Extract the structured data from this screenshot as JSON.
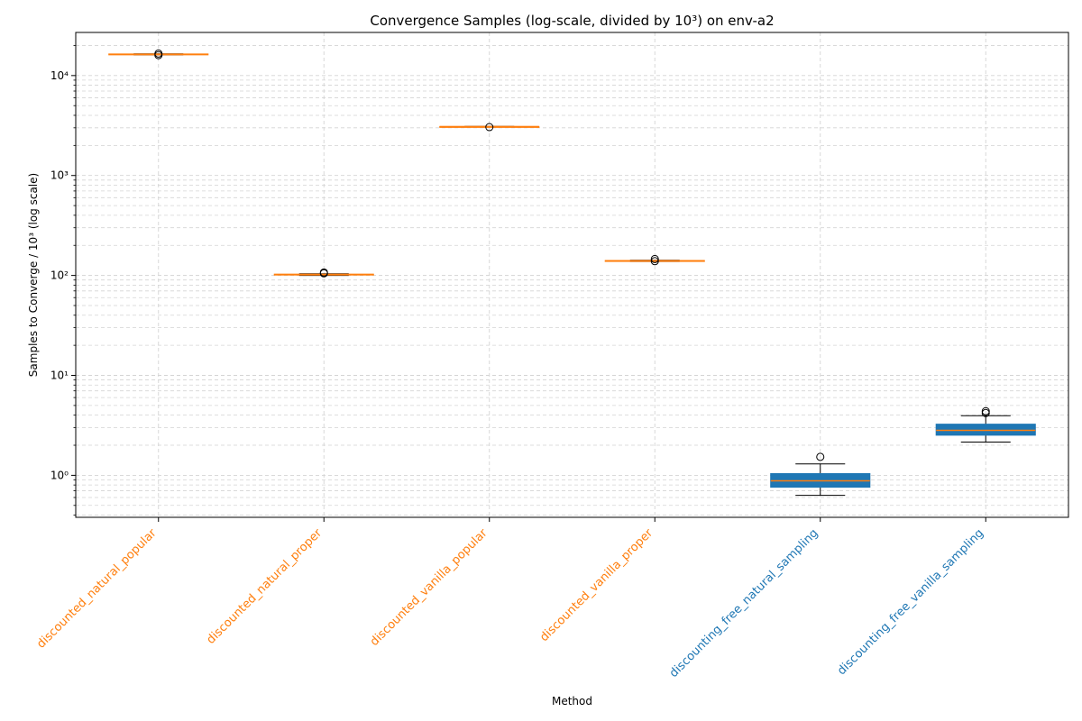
{
  "chart_data": {
    "type": "box",
    "title": "Convergence Samples (log-scale, divided by 10³) on env-a2",
    "xlabel": "Method",
    "ylabel": "Samples to Converge / 10³ (log scale)",
    "yscale": "log",
    "ylim": [
      0.38,
      27000
    ],
    "y_ticks": [
      1,
      10,
      100,
      1000,
      10000
    ],
    "y_tick_labels": [
      "10⁰",
      "10¹",
      "10²",
      "10³",
      "10⁴"
    ],
    "grid": true,
    "categories": [
      "discounted_natural_popular",
      "discounted_natural_proper",
      "discounted_vanilla_popular",
      "discounted_vanilla_proper",
      "discounting_free_natural_sampling",
      "discounting_free_vanilla_sampling"
    ],
    "category_colors": [
      "#ff7f0e",
      "#ff7f0e",
      "#ff7f0e",
      "#ff7f0e",
      "#1f77b4",
      "#1f77b4"
    ],
    "boxes": [
      {
        "q1": 16200,
        "median": 16300,
        "q3": 16450,
        "whisker_low": 16100,
        "whisker_high": 16500,
        "outliers": [
          16000,
          16600
        ],
        "color": "#ff7f0e"
      },
      {
        "q1": 101,
        "median": 102,
        "q3": 103,
        "whisker_low": 100,
        "whisker_high": 104,
        "outliers": [
          105,
          107
        ],
        "color": "#ff7f0e"
      },
      {
        "q1": 3070,
        "median": 3080,
        "q3": 3090,
        "whisker_low": 3060,
        "whisker_high": 3100,
        "outliers": [
          3050
        ],
        "color": "#ff7f0e"
      },
      {
        "q1": 139,
        "median": 140,
        "q3": 141,
        "whisker_low": 138,
        "whisker_high": 142,
        "outliers": [
          139,
          146
        ],
        "color": "#ff7f0e"
      },
      {
        "q1": 0.76,
        "median": 0.88,
        "q3": 1.04,
        "whisker_low": 0.63,
        "whisker_high": 1.3,
        "outliers": [
          1.53
        ],
        "color": "#1f77b4"
      },
      {
        "q1": 2.52,
        "median": 2.82,
        "q3": 3.25,
        "whisker_low": 2.15,
        "whisker_high": 3.95,
        "outliers": [
          4.2,
          4.38
        ],
        "color": "#1f77b4"
      }
    ],
    "median_color": "#ff7f0e",
    "outlier_marker": "circle",
    "colors": {
      "axis": "#000000",
      "grid": "#d4d4d4",
      "whisker": "#000000"
    }
  }
}
